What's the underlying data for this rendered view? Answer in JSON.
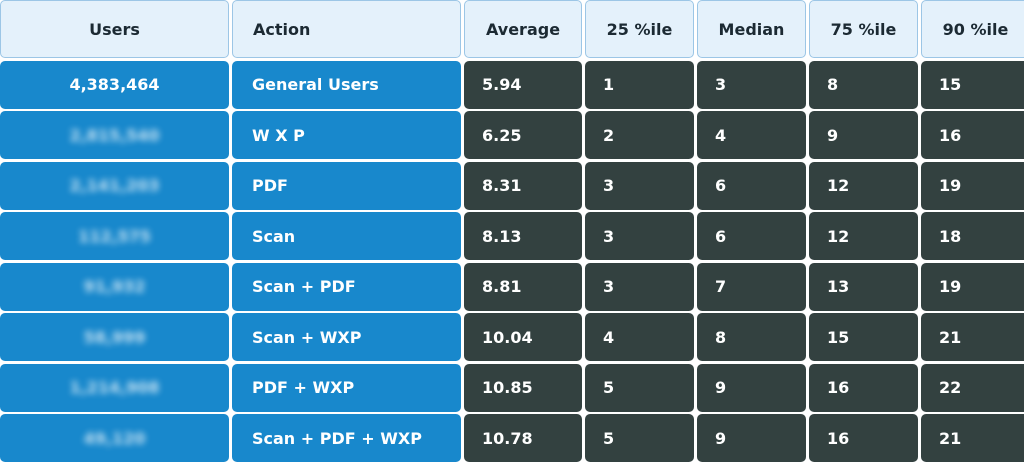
{
  "chart_data": {
    "type": "table",
    "columns": [
      "Users",
      "Action",
      "Average",
      "25 %ile",
      "Median",
      "75 %ile",
      "90 %ile"
    ],
    "rows": [
      {
        "users": "4,383,464",
        "action": "General Users",
        "average": "5.94",
        "p25": "1",
        "median": "3",
        "p75": "8",
        "p90": "15",
        "blurred": false
      },
      {
        "users": "2,815,540",
        "action": "W X P",
        "average": "6.25",
        "p25": "2",
        "median": "4",
        "p75": "9",
        "p90": "16",
        "blurred": true
      },
      {
        "users": "2,141,203",
        "action": "PDF",
        "average": "8.31",
        "p25": "3",
        "median": "6",
        "p75": "12",
        "p90": "19",
        "blurred": true
      },
      {
        "users": "112,575",
        "action": "Scan",
        "average": "8.13",
        "p25": "3",
        "median": "6",
        "p75": "12",
        "p90": "18",
        "blurred": true
      },
      {
        "users": "91,932",
        "action": "Scan + PDF",
        "average": "8.81",
        "p25": "3",
        "median": "7",
        "p75": "13",
        "p90": "19",
        "blurred": true
      },
      {
        "users": "58,999",
        "action": "Scan + WXP",
        "average": "10.04",
        "p25": "4",
        "median": "8",
        "p75": "15",
        "p90": "21",
        "blurred": true
      },
      {
        "users": "1,214,908",
        "action": "PDF + WXP",
        "average": "10.85",
        "p25": "5",
        "median": "9",
        "p75": "16",
        "p90": "22",
        "blurred": true
      },
      {
        "users": "49,120",
        "action": "Scan + PDF + WXP",
        "average": "10.78",
        "p25": "5",
        "median": "9",
        "p75": "16",
        "p90": "21",
        "blurred": true
      }
    ],
    "colors": {
      "header_bg": "#e4f1fb",
      "header_border": "#9cc6e6",
      "blue": "#1888cc",
      "dark": "#334140"
    }
  }
}
